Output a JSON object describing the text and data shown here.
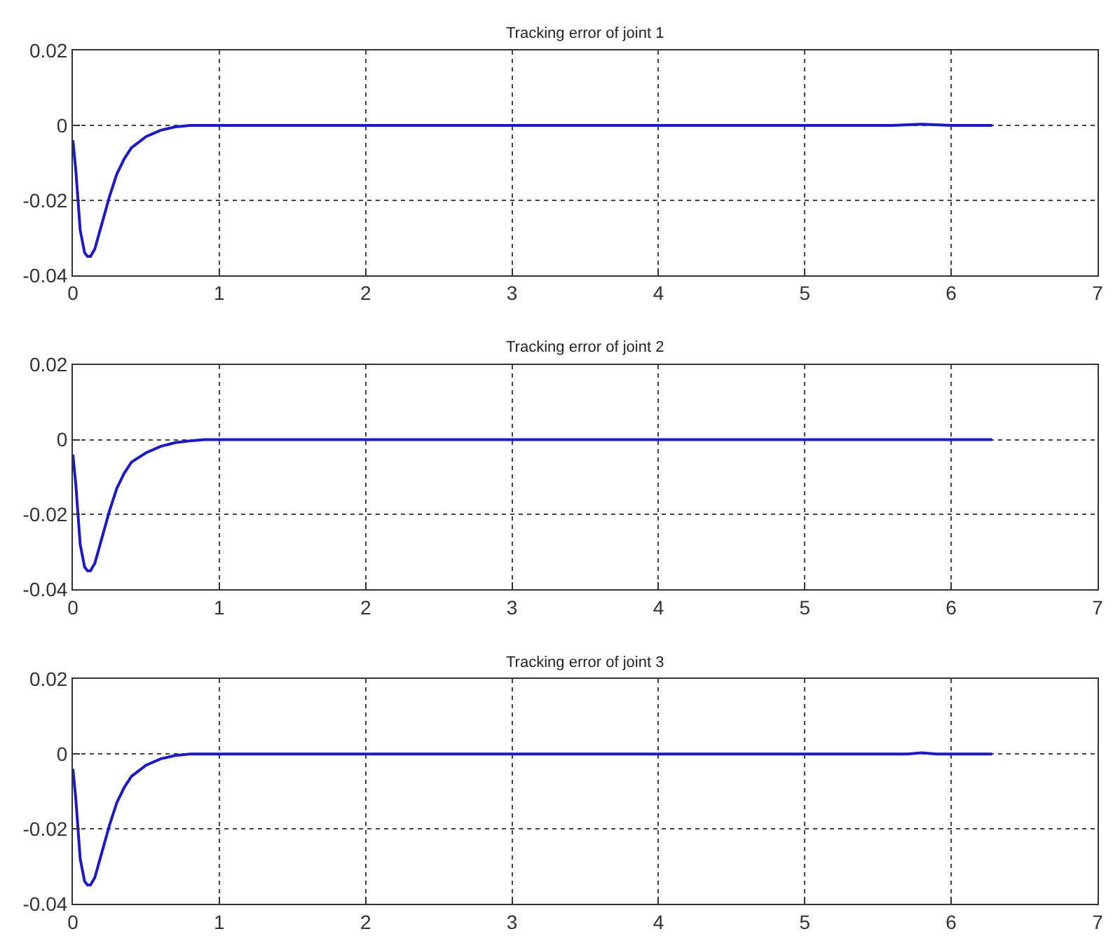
{
  "chart_data": [
    {
      "type": "line",
      "title": "Tracking error of joint 1",
      "xlim": [
        0,
        7
      ],
      "xticks": [
        0,
        1,
        2,
        3,
        4,
        5,
        6,
        7
      ],
      "ylim": [
        -0.04,
        0.02
      ],
      "yticks": [
        -0.04,
        -0.02,
        0,
        0.02
      ],
      "grid": true,
      "line_style": "solid",
      "series": [
        {
          "color": "#1a1ac8",
          "x": [
            0,
            0.02,
            0.05,
            0.08,
            0.1,
            0.12,
            0.15,
            0.2,
            0.25,
            0.3,
            0.35,
            0.4,
            0.5,
            0.6,
            0.7,
            0.8,
            5.6,
            5.8,
            6.0,
            6.28
          ],
          "values": [
            -0.004,
            -0.012,
            -0.028,
            -0.034,
            -0.035,
            -0.035,
            -0.033,
            -0.026,
            -0.019,
            -0.013,
            -0.009,
            -0.006,
            -0.003,
            -0.0013,
            -0.0004,
            0,
            0,
            0.0003,
            0,
            0
          ]
        }
      ]
    },
    {
      "type": "line",
      "title": "Tracking error of joint 2",
      "xlim": [
        0,
        7
      ],
      "xticks": [
        0,
        1,
        2,
        3,
        4,
        5,
        6,
        7
      ],
      "ylim": [
        -0.04,
        0.02
      ],
      "yticks": [
        -0.04,
        -0.02,
        0,
        0.02
      ],
      "grid": true,
      "line_style": "solid",
      "series": [
        {
          "color": "#1a1ac8",
          "x": [
            0,
            0.02,
            0.05,
            0.08,
            0.1,
            0.12,
            0.15,
            0.2,
            0.25,
            0.3,
            0.35,
            0.4,
            0.5,
            0.6,
            0.7,
            0.8,
            0.9,
            6.28
          ],
          "values": [
            -0.004,
            -0.012,
            -0.028,
            -0.034,
            -0.035,
            -0.035,
            -0.033,
            -0.026,
            -0.019,
            -0.013,
            -0.009,
            -0.006,
            -0.0035,
            -0.0018,
            -0.0008,
            -0.0003,
            0,
            0
          ]
        }
      ]
    },
    {
      "type": "line",
      "title": "Tracking error of joint 3",
      "xlim": [
        0,
        7
      ],
      "xticks": [
        0,
        1,
        2,
        3,
        4,
        5,
        6,
        7
      ],
      "ylim": [
        -0.04,
        0.02
      ],
      "yticks": [
        -0.04,
        -0.02,
        0,
        0.02
      ],
      "grid": true,
      "line_style": "solid",
      "series": [
        {
          "color": "#1a1ac8",
          "x": [
            0,
            0.02,
            0.05,
            0.08,
            0.1,
            0.12,
            0.15,
            0.2,
            0.25,
            0.3,
            0.35,
            0.4,
            0.5,
            0.6,
            0.7,
            0.8,
            5.7,
            5.8,
            5.9,
            6.28
          ],
          "values": [
            -0.004,
            -0.012,
            -0.028,
            -0.034,
            -0.035,
            -0.035,
            -0.033,
            -0.026,
            -0.019,
            -0.013,
            -0.009,
            -0.006,
            -0.003,
            -0.0013,
            -0.0004,
            0,
            0,
            0.0003,
            0,
            0
          ]
        }
      ]
    }
  ]
}
